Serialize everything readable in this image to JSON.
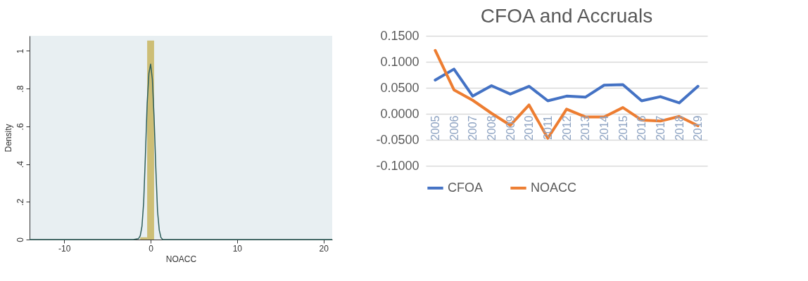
{
  "chart_data": [
    {
      "type": "histogram",
      "xlabel": "NOACC",
      "ylabel": "Density",
      "bins": [
        -1.2,
        -0.4,
        0.4
      ],
      "values": [
        0.012,
        1.055
      ],
      "color": "#c8b560",
      "series": [
        {
          "type": "line",
          "color": "#2e5e5a",
          "x": [
            -14,
            -2,
            -1.4,
            -1.2,
            -1,
            -0.8,
            -0.6,
            -0.4,
            -0.2,
            0,
            0.2,
            0.4,
            0.6,
            0.8,
            1,
            1.2,
            1.4,
            2,
            21
          ],
          "values": [
            0,
            0,
            0.005,
            0.02,
            0.07,
            0.2,
            0.45,
            0.72,
            0.88,
            0.93,
            0.85,
            0.65,
            0.38,
            0.15,
            0.05,
            0.01,
            0,
            0,
            0
          ]
        }
      ],
      "xlim": [
        -14,
        21
      ],
      "xticks": [
        -10,
        0,
        10,
        20
      ],
      "ylim": [
        0,
        1.08
      ],
      "yticks": [
        0,
        {
          "value": 0.2,
          "label": ".2"
        },
        {
          "value": 0.4,
          "label": ".4"
        },
        {
          "value": 0.6,
          "label": ".6"
        },
        {
          "value": 0.8,
          "label": ".8"
        },
        1
      ],
      "grid": false
    },
    {
      "type": "line",
      "title": "CFOA and Accruals",
      "categories": [
        "2005",
        "2006",
        "2007",
        "2008",
        "2009",
        "2010",
        "2011",
        "2012",
        "2013",
        "2014",
        "2015",
        "2016",
        "2017",
        "2018",
        "2019"
      ],
      "series": [
        {
          "name": "CFOA",
          "color": "#4472c4",
          "values": [
            0.065,
            0.086,
            0.034,
            0.054,
            0.038,
            0.053,
            0.025,
            0.034,
            0.032,
            0.055,
            0.056,
            0.025,
            0.033,
            0.021,
            0.053
          ]
        },
        {
          "name": "NOACC",
          "color": "#ed7d31",
          "values": [
            0.122,
            0.046,
            0.026,
            0.001,
            -0.022,
            0.017,
            -0.047,
            0.009,
            -0.006,
            -0.006,
            0.012,
            -0.012,
            -0.014,
            -0.005,
            -0.023
          ]
        }
      ],
      "ylim": [
        -0.1,
        0.15
      ],
      "yticks": [
        {
          "value": -0.1,
          "label": "-0.1000"
        },
        {
          "value": -0.05,
          "label": "-0.0500"
        },
        {
          "value": 0,
          "label": "0.0000"
        },
        {
          "value": 0.05,
          "label": "0.0500"
        },
        {
          "value": 0.1,
          "label": "0.1000"
        },
        {
          "value": 0.15,
          "label": "0.1500"
        }
      ],
      "grid": "y",
      "legend": "bottom",
      "marker": "none",
      "line_style": "solid"
    }
  ]
}
